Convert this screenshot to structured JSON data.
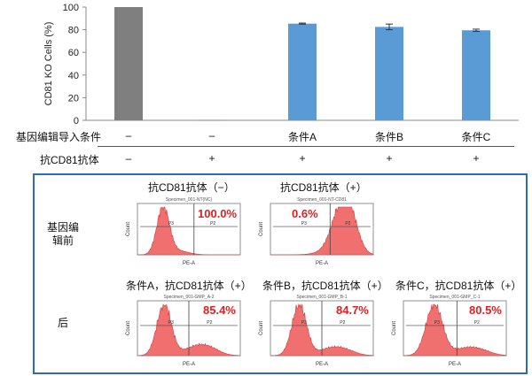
{
  "chart_data": {
    "type": "bar",
    "ylabel": "CD81  KO Cells (%)",
    "ylim": [
      0,
      100
    ],
    "yticks": [
      0,
      20,
      40,
      60,
      80,
      100
    ],
    "values": [
      100,
      0,
      85.4,
      82.5,
      79.5
    ],
    "errors": [
      0,
      0,
      0.5,
      2.5,
      1.0
    ],
    "colors": [
      "#7f7f7f",
      "#7f7f7f",
      "#5b9bd5",
      "#5b9bd5",
      "#5b9bd5"
    ],
    "grid": false
  },
  "table": {
    "row1_label": "基因编辑导入条件",
    "row1_cells": [
      "–",
      "–",
      "条件A",
      "条件B",
      "条件C"
    ],
    "row2_label": "抗CD81抗体",
    "row2_cells": [
      "–",
      "+",
      "+",
      "+",
      "+"
    ]
  },
  "facs": {
    "row_before": "基因编辑前",
    "row_after": "后",
    "panels": [
      {
        "title": "抗CD81抗体（−）",
        "pct": "100.0%",
        "specimen": "Specimen_001-NT(NC)"
      },
      {
        "title": "抗CD81抗体（+）",
        "pct": "0.6%",
        "specimen": "Specimen_001-NT-CD81"
      },
      {
        "title": "条件A，抗CD81抗体（+）",
        "pct": "85.4%",
        "specimen": "Specimen_001-GMP_A-2"
      },
      {
        "title": "条件B，抗CD81抗体（+）",
        "pct": "84.7%",
        "specimen": "Specimen_001-GMP_B-1"
      },
      {
        "title": "条件C，抗CD81抗体（+）",
        "pct": "80.5%",
        "specimen": "Specimen_001-GMP_C-1"
      }
    ],
    "axis_x": "PE-A",
    "axis_y": "Count",
    "gate_left": "P3",
    "gate_right": "P2",
    "box_color": "#2e6bb5",
    "hist_color": "#f07070",
    "pct_color": "#e02020"
  }
}
